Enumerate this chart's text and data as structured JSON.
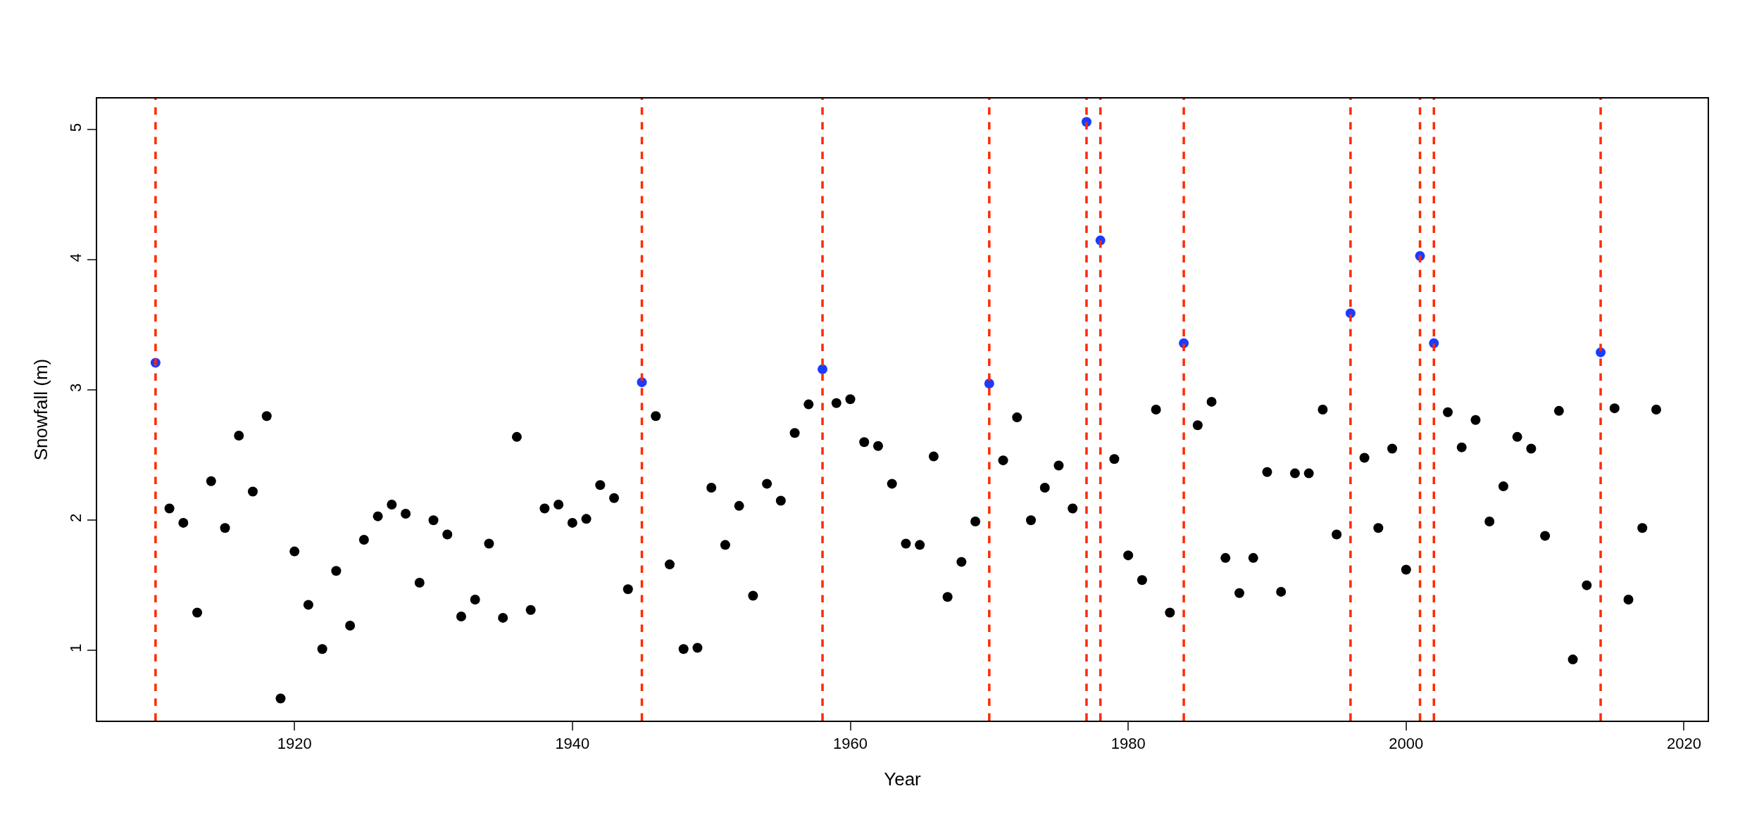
{
  "chart_data": {
    "type": "scatter",
    "xlabel": "Year",
    "ylabel": "Snowfall (m)",
    "xlim": [
      1905.8,
      2021.7
    ],
    "ylim": [
      0.46,
      5.24
    ],
    "xticks": [
      1920,
      1940,
      1960,
      1980,
      2000,
      2020
    ],
    "yticks": [
      1,
      2,
      3,
      4,
      5
    ],
    "grid": false,
    "marker": "circle",
    "series": [
      {
        "color": "#000000",
        "x": [
          1911,
          1912,
          1913,
          1914,
          1915,
          1916,
          1917,
          1918,
          1919,
          1920,
          1921,
          1922,
          1923,
          1924,
          1925,
          1926,
          1927,
          1928,
          1929,
          1930,
          1931,
          1932,
          1933,
          1934,
          1935,
          1936,
          1937,
          1938,
          1939,
          1940,
          1941,
          1942,
          1943,
          1944,
          1946,
          1947,
          1948,
          1949,
          1950,
          1951,
          1952,
          1953,
          1954,
          1955,
          1956,
          1957,
          1959,
          1960,
          1961,
          1962,
          1963,
          1964,
          1965,
          1966,
          1967,
          1968,
          1969,
          1971,
          1972,
          1973,
          1974,
          1975,
          1976,
          1979,
          1980,
          1981,
          1982,
          1983,
          1985,
          1986,
          1987,
          1988,
          1989,
          1990,
          1991,
          1992,
          1993,
          1994,
          1995,
          1997,
          1998,
          1999,
          2000,
          2003,
          2004,
          2005,
          2006,
          2007,
          2008,
          2009,
          2010,
          2011,
          2012,
          2013,
          2015,
          2016,
          2017,
          2018
        ],
        "values": [
          2.09,
          1.98,
          1.29,
          2.3,
          1.94,
          2.65,
          2.22,
          2.8,
          0.63,
          1.76,
          1.35,
          1.01,
          1.61,
          1.19,
          1.85,
          2.03,
          2.12,
          2.05,
          1.52,
          2.0,
          1.89,
          1.26,
          1.39,
          1.82,
          1.25,
          2.64,
          1.31,
          2.09,
          2.12,
          1.98,
          2.01,
          2.27,
          2.17,
          1.47,
          2.8,
          1.66,
          1.01,
          1.02,
          2.25,
          1.81,
          2.11,
          1.42,
          2.28,
          2.15,
          2.67,
          2.89,
          2.9,
          2.93,
          2.6,
          2.57,
          2.28,
          1.82,
          1.81,
          2.49,
          1.41,
          1.68,
          1.99,
          2.46,
          2.79,
          2.0,
          2.25,
          2.42,
          2.09,
          2.47,
          1.73,
          1.54,
          2.85,
          1.29,
          2.73,
          2.91,
          1.71,
          1.44,
          1.71,
          2.37,
          1.45,
          2.36,
          2.36,
          2.85,
          1.89,
          2.48,
          1.94,
          2.55,
          1.62,
          2.83,
          2.56,
          2.77,
          1.99,
          2.26,
          2.64,
          2.55,
          1.88,
          2.84,
          0.93,
          1.5,
          2.86,
          1.39,
          1.94,
          2.85
        ]
      },
      {
        "color": "#1a3cff",
        "x": [
          1910,
          1945,
          1958,
          1970,
          1977,
          1978,
          1984,
          1996,
          2001,
          2002,
          2014
        ],
        "values": [
          3.21,
          3.06,
          3.16,
          3.05,
          5.06,
          4.15,
          3.36,
          3.59,
          4.03,
          3.36,
          3.29
        ]
      }
    ],
    "ref_lines": [
      {
        "axis": "x",
        "value": 1910,
        "color": "#ff2a00",
        "line_style": "dashed"
      },
      {
        "axis": "x",
        "value": 1945,
        "color": "#ff2a00",
        "line_style": "dashed"
      },
      {
        "axis": "x",
        "value": 1958,
        "color": "#ff2a00",
        "line_style": "dashed"
      },
      {
        "axis": "x",
        "value": 1970,
        "color": "#ff2a00",
        "line_style": "dashed"
      },
      {
        "axis": "x",
        "value": 1977,
        "color": "#ff2a00",
        "line_style": "dashed"
      },
      {
        "axis": "x",
        "value": 1978,
        "color": "#ff2a00",
        "line_style": "dashed"
      },
      {
        "axis": "x",
        "value": 1984,
        "color": "#ff2a00",
        "line_style": "dashed"
      },
      {
        "axis": "x",
        "value": 1996,
        "color": "#ff2a00",
        "line_style": "dashed"
      },
      {
        "axis": "x",
        "value": 2001,
        "color": "#ff2a00",
        "line_style": "dashed"
      },
      {
        "axis": "x",
        "value": 2002,
        "color": "#ff2a00",
        "line_style": "dashed"
      },
      {
        "axis": "x",
        "value": 2014,
        "color": "#ff2a00",
        "line_style": "dashed"
      }
    ]
  }
}
